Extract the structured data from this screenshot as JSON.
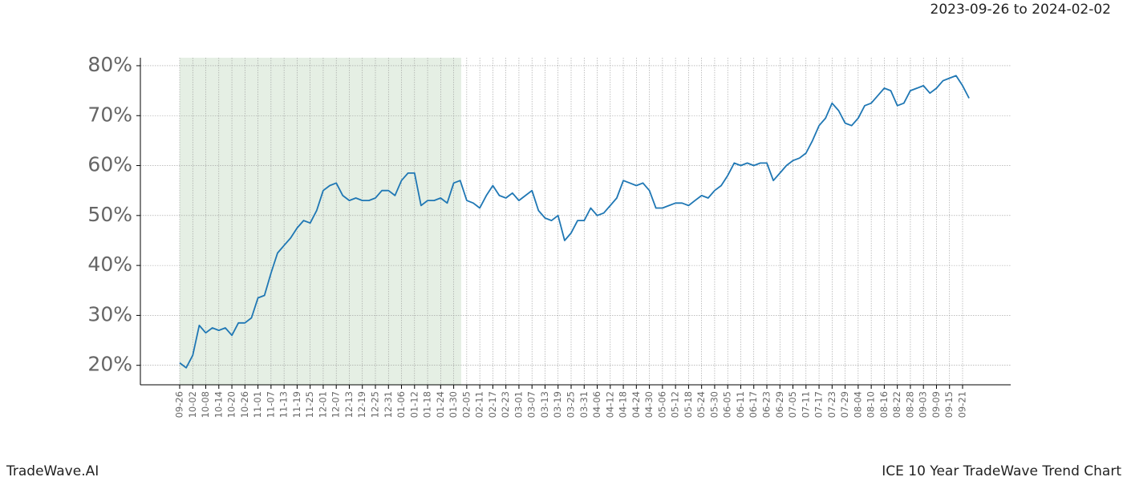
{
  "chart_data": {
    "type": "line",
    "title": "2023-09-26 to 2024-02-02",
    "footer_left": "TradeWave.AI",
    "footer_right": "ICE 10 Year TradeWave Trend Chart",
    "categories": [
      "09-26",
      null,
      "10-02",
      null,
      "10-08",
      null,
      "10-14",
      null,
      "10-20",
      null,
      "10-26",
      null,
      "11-01",
      null,
      "11-07",
      null,
      "11-13",
      null,
      "11-19",
      null,
      "11-25",
      null,
      "12-01",
      null,
      "12-07",
      null,
      "12-13",
      null,
      "12-19",
      null,
      "12-25",
      null,
      "12-31",
      null,
      "01-06",
      null,
      "01-12",
      null,
      "01-18",
      null,
      "01-24",
      null,
      "01-30",
      null,
      "02-05",
      null,
      "02-11",
      null,
      "02-17",
      null,
      "02-23",
      null,
      "03-01",
      null,
      "03-07",
      null,
      "03-13",
      null,
      "03-19",
      null,
      "03-25",
      null,
      "03-31",
      null,
      "04-06",
      null,
      "04-12",
      null,
      "04-18",
      null,
      "04-24",
      null,
      "04-30",
      null,
      "05-06",
      null,
      "05-12",
      null,
      "05-18",
      null,
      "05-24",
      null,
      "05-30",
      null,
      "06-05",
      null,
      "06-11",
      null,
      "06-17",
      null,
      "06-23",
      null,
      "06-29",
      null,
      "07-05",
      null,
      "07-11",
      null,
      "07-17",
      null,
      "07-23",
      null,
      "07-29",
      null,
      "08-04",
      null,
      "08-10",
      null,
      "08-16",
      null,
      "08-22",
      null,
      "08-28",
      null,
      "09-03",
      null,
      "09-09",
      null,
      "09-15",
      null,
      "09-21",
      null
    ],
    "values": [
      20.5,
      19.5,
      22,
      28,
      26.5,
      27.5,
      27,
      27.5,
      26,
      28.5,
      28.5,
      29.5,
      33.5,
      34,
      38.5,
      42.5,
      44,
      45.5,
      47.5,
      49,
      48.5,
      51,
      55,
      56,
      56.5,
      54,
      53,
      53.5,
      53,
      53,
      53.5,
      55,
      55,
      54,
      57,
      58.5,
      58.5,
      52,
      53,
      53,
      53.5,
      52.5,
      56.5,
      57,
      53,
      52.5,
      51.5,
      54,
      56,
      54,
      53.5,
      54.5,
      53,
      54,
      55,
      51,
      49.5,
      49,
      50,
      45,
      46.5,
      49,
      49,
      51.5,
      50,
      50.5,
      52,
      53.5,
      57,
      56.5,
      56,
      56.5,
      55,
      51.5,
      51.5,
      52,
      52.5,
      52.5,
      52,
      53,
      54,
      53.5,
      55,
      56,
      58,
      60.5,
      60,
      60.5,
      60,
      60.5,
      60.5,
      57,
      58.5,
      60,
      61,
      61.5,
      62.5,
      65,
      68,
      69.5,
      72.5,
      71,
      68.5,
      68,
      69.5,
      72,
      72.5,
      74,
      75.5,
      75,
      72,
      72.5,
      75,
      75.5,
      76,
      74.5,
      75.5,
      77,
      77.5,
      78,
      76,
      73.5
    ],
    "color": "#1f77b4",
    "ylim": [
      16.1,
      81.6
    ],
    "yticks": [
      {
        "value": 20,
        "label": "20%"
      },
      {
        "value": 30,
        "label": "30%"
      },
      {
        "value": 40,
        "label": "40%"
      },
      {
        "value": 50,
        "label": "50%"
      },
      {
        "value": 60,
        "label": "60%"
      },
      {
        "value": 70,
        "label": "70%"
      },
      {
        "value": 80,
        "label": "80%"
      }
    ],
    "grid": true
  }
}
